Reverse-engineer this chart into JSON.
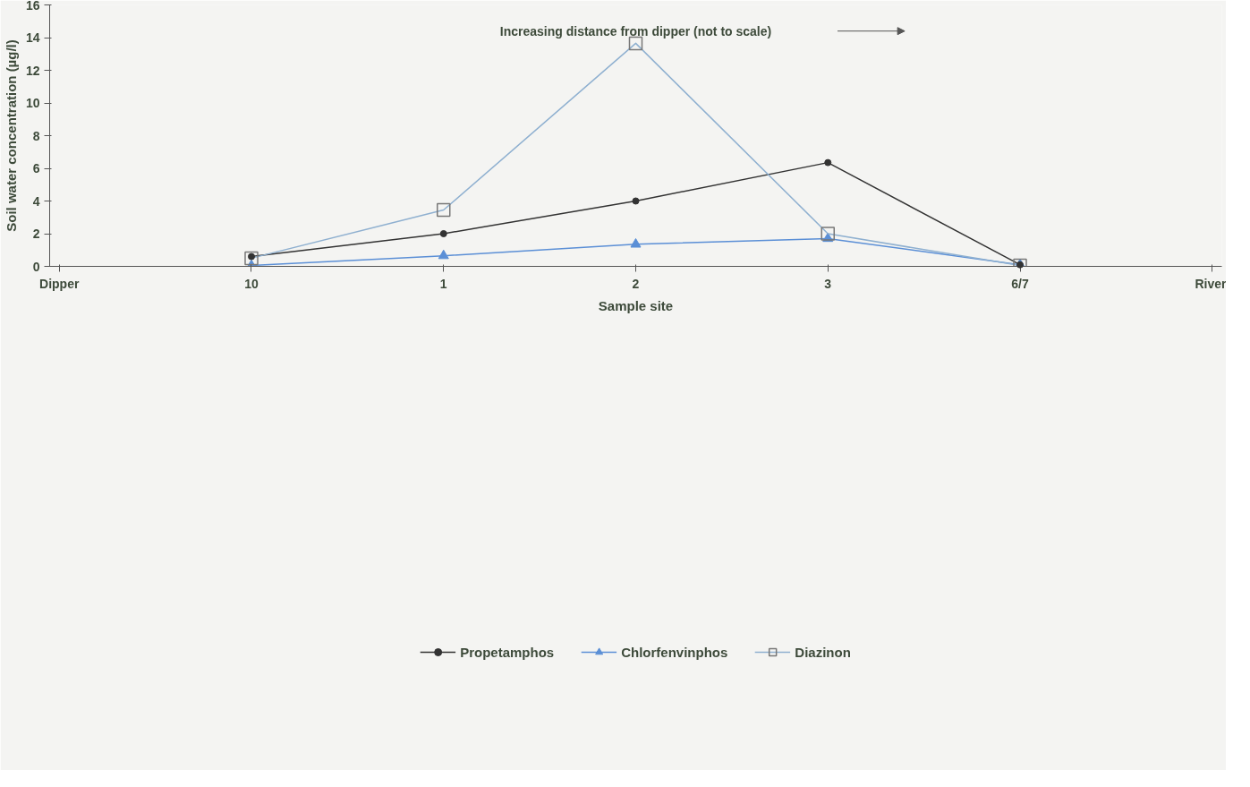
{
  "chart_data": {
    "type": "line",
    "xlabel": "Sample site",
    "ylabel": "Soil water concentration (µg/l)",
    "annotations": [
      "Increasing distance from dipper (not to scale)"
    ],
    "categories": [
      "Dipper",
      "10",
      "1",
      "2",
      "3",
      "6/7",
      "River"
    ],
    "series": [
      {
        "name": "Propetamphos",
        "color": "#333333",
        "marker": "circle",
        "values": [
          null,
          0.6,
          2.0,
          4.0,
          6.35,
          0.1,
          null
        ]
      },
      {
        "name": "Chlorfenvinphos",
        "color": "#5b8fd6",
        "marker": "triangle",
        "values": [
          null,
          0.05,
          0.65,
          1.35,
          1.7,
          0.1,
          null
        ]
      },
      {
        "name": "Diazinon",
        "color": "#8fb0d0",
        "marker": "square",
        "values": [
          null,
          0.5,
          3.45,
          13.65,
          2.0,
          0.05,
          null
        ]
      }
    ],
    "ylim": [
      0,
      16
    ],
    "yticks": [
      0,
      2,
      4,
      6,
      8,
      10,
      12,
      14,
      16
    ],
    "grid": false,
    "legend": "bottom"
  }
}
